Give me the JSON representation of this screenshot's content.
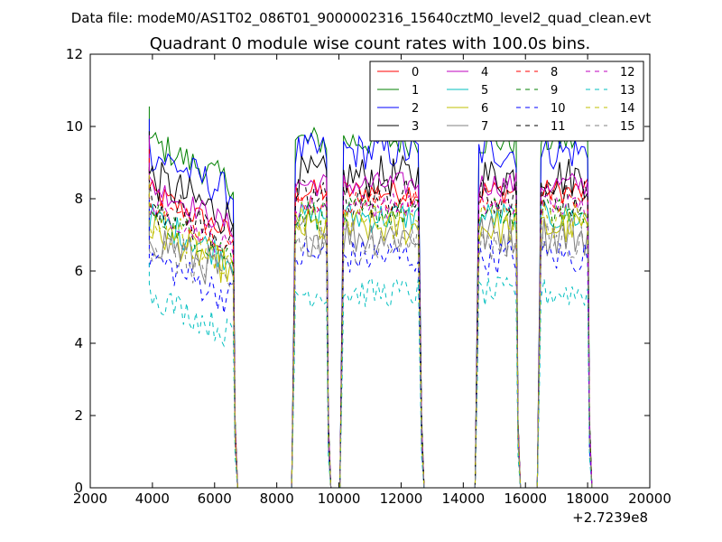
{
  "chart_data": {
    "type": "line",
    "suptitle": "Data file: modeM0/AS1T02_086T01_9000002316_15640cztM0_level2_quad_clean.evt",
    "title": "Quadrant 0 module wise count rates with 100.0s bins.",
    "xlabel": "",
    "ylabel": "",
    "offset_text": "+2.7239e8",
    "xlim": [
      2000,
      20000
    ],
    "ylim": [
      0,
      12
    ],
    "xticks": [
      2000,
      4000,
      6000,
      8000,
      10000,
      12000,
      14000,
      16000,
      18000,
      20000
    ],
    "yticks": [
      0,
      2,
      4,
      6,
      8,
      10,
      12
    ],
    "grid": false,
    "legend": {
      "position": "top-right",
      "columns": 4
    },
    "segments": [
      [
        3900,
        6600
      ],
      [
        8600,
        9600
      ],
      [
        10150,
        12600
      ],
      [
        14500,
        15700
      ],
      [
        16500,
        18000
      ]
    ],
    "series": [
      {
        "name": "0",
        "color": "#ff0000",
        "dash": "solid",
        "level": 8.2
      },
      {
        "name": "1",
        "color": "#008000",
        "dash": "solid",
        "level": 9.6
      },
      {
        "name": "2",
        "color": "#0000ff",
        "dash": "solid",
        "level": 9.3
      },
      {
        "name": "3",
        "color": "#000000",
        "dash": "solid",
        "level": 8.6
      },
      {
        "name": "4",
        "color": "#bf00bf",
        "dash": "solid",
        "level": 8.4
      },
      {
        "name": "5",
        "color": "#00bfbf",
        "dash": "solid",
        "level": 7.5
      },
      {
        "name": "6",
        "color": "#bfbf00",
        "dash": "solid",
        "level": 7.2
      },
      {
        "name": "7",
        "color": "#808080",
        "dash": "solid",
        "level": 7.0
      },
      {
        "name": "8",
        "color": "#ff0000",
        "dash": "dashed",
        "level": 7.9
      },
      {
        "name": "9",
        "color": "#008000",
        "dash": "dashed",
        "level": 7.6
      },
      {
        "name": "10",
        "color": "#0000ff",
        "dash": "dashed",
        "level": 6.4
      },
      {
        "name": "11",
        "color": "#000000",
        "dash": "dashed",
        "level": 8.0
      },
      {
        "name": "12",
        "color": "#bf00bf",
        "dash": "dashed",
        "level": 7.8
      },
      {
        "name": "13",
        "color": "#00bfbf",
        "dash": "dashed",
        "level": 5.4
      },
      {
        "name": "14",
        "color": "#bfbf00",
        "dash": "dashed",
        "level": 7.4
      },
      {
        "name": "15",
        "color": "#808080",
        "dash": "dashed",
        "level": 6.8
      }
    ]
  }
}
